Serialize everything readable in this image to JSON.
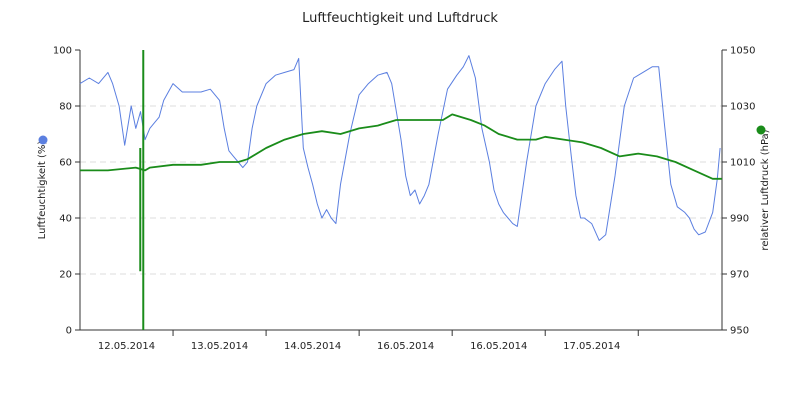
{
  "chart_data": {
    "type": "line",
    "title": "Luftfeuchtigkeit und Luftdruck",
    "x_tick_labels": [
      "12.05.2014",
      "13.05.2014",
      "14.05.2014",
      "16.05.2014",
      "16.05.2014",
      "17.05.2014"
    ],
    "x_range": [
      0,
      6.9
    ],
    "y_left": {
      "label": "Luftfeuchtigkeit (%)",
      "range": [
        0,
        100
      ],
      "ticks": [
        "0",
        "20",
        "40",
        "60",
        "80",
        "100"
      ]
    },
    "y_right": {
      "label": "relativer Luftdruck (hPa)",
      "range": [
        950,
        1050
      ],
      "ticks": [
        "950",
        "970",
        "990",
        "1010",
        "1030",
        "1050"
      ]
    },
    "grid": "horizontal dashed",
    "series": [
      {
        "axis": "left",
        "color": "#5b7fe0",
        "points": [
          [
            0.0,
            88
          ],
          [
            0.1,
            90
          ],
          [
            0.2,
            88
          ],
          [
            0.3,
            92
          ],
          [
            0.35,
            88
          ],
          [
            0.42,
            80
          ],
          [
            0.48,
            66
          ],
          [
            0.55,
            80
          ],
          [
            0.6,
            72
          ],
          [
            0.65,
            78
          ],
          [
            0.7,
            68
          ],
          [
            0.75,
            72
          ],
          [
            0.8,
            74
          ],
          [
            0.85,
            76
          ],
          [
            0.9,
            82
          ],
          [
            1.0,
            88
          ],
          [
            1.1,
            85
          ],
          [
            1.2,
            85
          ],
          [
            1.3,
            85
          ],
          [
            1.4,
            86
          ],
          [
            1.5,
            82
          ],
          [
            1.55,
            72
          ],
          [
            1.6,
            64
          ],
          [
            1.65,
            62
          ],
          [
            1.7,
            60
          ],
          [
            1.75,
            58
          ],
          [
            1.8,
            60
          ],
          [
            1.85,
            72
          ],
          [
            1.9,
            80
          ],
          [
            2.0,
            88
          ],
          [
            2.1,
            91
          ],
          [
            2.2,
            92
          ],
          [
            2.3,
            93
          ],
          [
            2.35,
            97
          ],
          [
            2.4,
            65
          ],
          [
            2.45,
            58
          ],
          [
            2.5,
            52
          ],
          [
            2.55,
            45
          ],
          [
            2.6,
            40
          ],
          [
            2.65,
            43
          ],
          [
            2.7,
            40
          ],
          [
            2.75,
            38
          ],
          [
            2.8,
            52
          ],
          [
            2.9,
            70
          ],
          [
            3.0,
            84
          ],
          [
            3.1,
            88
          ],
          [
            3.2,
            91
          ],
          [
            3.3,
            92
          ],
          [
            3.35,
            88
          ],
          [
            3.45,
            68
          ],
          [
            3.5,
            55
          ],
          [
            3.55,
            48
          ],
          [
            3.6,
            50
          ],
          [
            3.65,
            45
          ],
          [
            3.7,
            48
          ],
          [
            3.75,
            52
          ],
          [
            3.85,
            70
          ],
          [
            3.95,
            86
          ],
          [
            4.05,
            91
          ],
          [
            4.12,
            94
          ],
          [
            4.18,
            98
          ],
          [
            4.25,
            90
          ],
          [
            4.32,
            72
          ],
          [
            4.4,
            60
          ],
          [
            4.45,
            50
          ],
          [
            4.5,
            45
          ],
          [
            4.55,
            42
          ],
          [
            4.6,
            40
          ],
          [
            4.65,
            38
          ],
          [
            4.7,
            37
          ],
          [
            4.8,
            60
          ],
          [
            4.9,
            80
          ],
          [
            5.0,
            88
          ],
          [
            5.1,
            93
          ],
          [
            5.18,
            96
          ],
          [
            5.22,
            80
          ],
          [
            5.28,
            62
          ],
          [
            5.33,
            48
          ],
          [
            5.38,
            40
          ],
          [
            5.42,
            40
          ],
          [
            5.5,
            38
          ],
          [
            5.58,
            32
          ],
          [
            5.65,
            34
          ],
          [
            5.75,
            55
          ],
          [
            5.85,
            80
          ],
          [
            5.95,
            90
          ],
          [
            6.05,
            92
          ],
          [
            6.15,
            94
          ],
          [
            6.22,
            94
          ],
          [
            6.28,
            74
          ],
          [
            6.35,
            52
          ],
          [
            6.42,
            44
          ],
          [
            6.5,
            42
          ],
          [
            6.55,
            40
          ],
          [
            6.6,
            36
          ],
          [
            6.65,
            34
          ],
          [
            6.72,
            35
          ],
          [
            6.8,
            42
          ],
          [
            6.85,
            54
          ],
          [
            6.88,
            65
          ]
        ]
      },
      {
        "axis": "right",
        "color": "#1a8c1a",
        "points": [
          [
            0.0,
            1007
          ],
          [
            0.3,
            1007
          ],
          [
            0.6,
            1008
          ],
          [
            0.7,
            1007
          ],
          [
            0.75,
            1008
          ],
          [
            1.0,
            1009
          ],
          [
            1.3,
            1009
          ],
          [
            1.5,
            1010
          ],
          [
            1.7,
            1010
          ],
          [
            1.8,
            1011
          ],
          [
            2.0,
            1015
          ],
          [
            2.2,
            1018
          ],
          [
            2.4,
            1020
          ],
          [
            2.6,
            1021
          ],
          [
            2.8,
            1020
          ],
          [
            3.0,
            1022
          ],
          [
            3.2,
            1023
          ],
          [
            3.4,
            1025
          ],
          [
            3.6,
            1025
          ],
          [
            3.8,
            1025
          ],
          [
            3.9,
            1025
          ],
          [
            4.0,
            1027
          ],
          [
            4.2,
            1025
          ],
          [
            4.35,
            1023
          ],
          [
            4.5,
            1020
          ],
          [
            4.7,
            1018
          ],
          [
            4.9,
            1018
          ],
          [
            5.0,
            1019
          ],
          [
            5.2,
            1018
          ],
          [
            5.4,
            1017
          ],
          [
            5.6,
            1015
          ],
          [
            5.8,
            1012
          ],
          [
            6.0,
            1013
          ],
          [
            6.2,
            1012
          ],
          [
            6.4,
            1010
          ],
          [
            6.6,
            1007
          ],
          [
            6.8,
            1004
          ],
          [
            6.9,
            1004
          ]
        ]
      }
    ],
    "spike": {
      "x": 0.68,
      "y_min_hpa": 950,
      "y_max_hpa": 1050
    },
    "legend_markers": [
      {
        "color": "#5b7fe0"
      },
      {
        "color": "#1a8c1a"
      }
    ]
  }
}
